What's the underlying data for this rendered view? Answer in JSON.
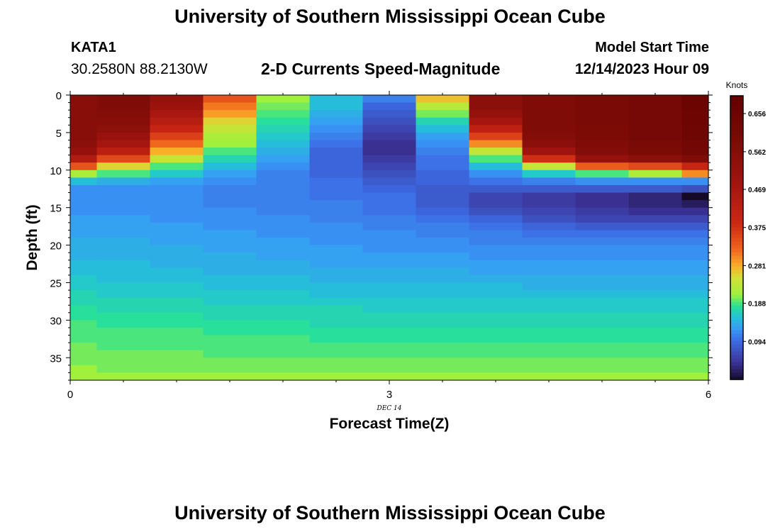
{
  "header": {
    "title": "University of Southern Mississippi Ocean Cube",
    "station_id": "KATA1",
    "coords": "30.2580N  88.2130W",
    "plot_title": "2-D Currents Speed-Magnitude",
    "model_start_label": "Model Start Time",
    "model_start_value": "12/14/2023 Hour 09"
  },
  "footer": {
    "title": "University of Southern Mississippi Ocean Cube"
  },
  "chart_data": {
    "type": "heatmap",
    "title": "2-D Currents Speed-Magnitude",
    "xlabel": "Forecast Time(Z)",
    "ylabel": "Depth (ft)",
    "x_ticks": [
      "0",
      "3",
      "6"
    ],
    "x_tick_values": [
      0,
      3,
      6
    ],
    "x_date_label": "DEC 14",
    "y_ticks": [
      "0",
      "5",
      "10",
      "15",
      "20",
      "25",
      "30",
      "35"
    ],
    "y_tick_values": [
      0,
      5,
      10,
      15,
      20,
      25,
      30,
      35
    ],
    "xlim": [
      0,
      6
    ],
    "ylim": [
      0,
      38
    ],
    "colorbar": {
      "label": "Knots",
      "min": 0.0,
      "max": 0.7,
      "ticks": [
        "0.094",
        "0.188",
        "0.281",
        "0.375",
        "0.469",
        "0.562",
        "0.656"
      ],
      "tick_values": [
        0.094,
        0.188,
        0.281,
        0.375,
        0.469,
        0.562,
        0.656
      ]
    },
    "time_columns": [
      0,
      0.25,
      0.75,
      1.25,
      1.75,
      2.25,
      2.75,
      3.25,
      3.75,
      4.25,
      4.75,
      5.25,
      5.75,
      6.0
    ],
    "depth_rows": [
      0,
      1,
      2,
      3,
      4,
      5,
      6,
      7,
      8,
      9,
      10,
      11,
      12,
      13,
      14,
      15,
      16,
      17,
      18,
      19,
      20,
      21,
      22,
      23,
      24,
      25,
      26,
      27,
      28,
      29,
      30,
      31,
      32,
      33,
      34,
      35,
      36,
      37,
      38
    ],
    "speed_knots": [
      [
        0.56,
        0.58,
        0.52,
        0.34,
        0.21,
        0.15,
        0.11,
        0.27,
        0.55,
        0.58,
        0.6,
        0.61,
        0.66
      ],
      [
        0.56,
        0.58,
        0.5,
        0.31,
        0.2,
        0.15,
        0.09,
        0.23,
        0.55,
        0.58,
        0.6,
        0.61,
        0.66
      ],
      [
        0.56,
        0.57,
        0.47,
        0.29,
        0.19,
        0.14,
        0.08,
        0.2,
        0.52,
        0.58,
        0.6,
        0.61,
        0.65
      ],
      [
        0.56,
        0.56,
        0.44,
        0.26,
        0.18,
        0.13,
        0.07,
        0.17,
        0.48,
        0.58,
        0.6,
        0.61,
        0.65
      ],
      [
        0.56,
        0.54,
        0.4,
        0.24,
        0.17,
        0.12,
        0.06,
        0.15,
        0.42,
        0.58,
        0.59,
        0.61,
        0.64
      ],
      [
        0.56,
        0.51,
        0.36,
        0.22,
        0.16,
        0.11,
        0.05,
        0.13,
        0.36,
        0.57,
        0.59,
        0.61,
        0.64
      ],
      [
        0.55,
        0.48,
        0.32,
        0.21,
        0.15,
        0.1,
        0.04,
        0.12,
        0.3,
        0.55,
        0.58,
        0.6,
        0.63
      ],
      [
        0.52,
        0.43,
        0.28,
        0.19,
        0.14,
        0.09,
        0.04,
        0.11,
        0.24,
        0.49,
        0.57,
        0.59,
        0.62
      ],
      [
        0.45,
        0.35,
        0.24,
        0.17,
        0.13,
        0.09,
        0.05,
        0.1,
        0.19,
        0.38,
        0.52,
        0.55,
        0.58
      ],
      [
        0.34,
        0.26,
        0.19,
        0.15,
        0.12,
        0.09,
        0.06,
        0.1,
        0.15,
        0.24,
        0.33,
        0.35,
        0.4
      ],
      [
        0.22,
        0.19,
        0.16,
        0.13,
        0.11,
        0.09,
        0.07,
        0.09,
        0.12,
        0.16,
        0.19,
        0.22,
        0.3
      ],
      [
        0.15,
        0.14,
        0.13,
        0.12,
        0.11,
        0.1,
        0.08,
        0.09,
        0.1,
        0.11,
        0.12,
        0.12,
        0.12
      ],
      [
        0.12,
        0.12,
        0.12,
        0.11,
        0.11,
        0.1,
        0.09,
        0.08,
        0.08,
        0.08,
        0.08,
        0.08,
        0.07
      ],
      [
        0.12,
        0.12,
        0.12,
        0.11,
        0.11,
        0.1,
        0.1,
        0.08,
        0.06,
        0.05,
        0.04,
        0.03,
        0.0
      ],
      [
        0.12,
        0.12,
        0.12,
        0.11,
        0.11,
        0.11,
        0.1,
        0.08,
        0.06,
        0.05,
        0.04,
        0.03,
        0.02
      ],
      [
        0.12,
        0.12,
        0.12,
        0.12,
        0.11,
        0.11,
        0.1,
        0.09,
        0.07,
        0.06,
        0.05,
        0.04,
        0.04
      ],
      [
        0.13,
        0.13,
        0.12,
        0.12,
        0.12,
        0.11,
        0.11,
        0.1,
        0.09,
        0.07,
        0.06,
        0.06,
        0.06
      ],
      [
        0.13,
        0.13,
        0.13,
        0.12,
        0.12,
        0.12,
        0.11,
        0.11,
        0.1,
        0.09,
        0.08,
        0.08,
        0.08
      ],
      [
        0.13,
        0.13,
        0.13,
        0.13,
        0.12,
        0.12,
        0.12,
        0.11,
        0.11,
        0.1,
        0.1,
        0.1,
        0.1
      ],
      [
        0.14,
        0.14,
        0.13,
        0.13,
        0.13,
        0.12,
        0.12,
        0.12,
        0.11,
        0.11,
        0.11,
        0.11,
        0.11
      ],
      [
        0.14,
        0.14,
        0.14,
        0.13,
        0.13,
        0.13,
        0.12,
        0.12,
        0.12,
        0.12,
        0.12,
        0.12,
        0.12
      ],
      [
        0.14,
        0.14,
        0.14,
        0.14,
        0.13,
        0.13,
        0.13,
        0.13,
        0.12,
        0.12,
        0.12,
        0.12,
        0.12
      ],
      [
        0.15,
        0.15,
        0.14,
        0.14,
        0.14,
        0.13,
        0.13,
        0.13,
        0.13,
        0.13,
        0.13,
        0.13,
        0.13
      ],
      [
        0.15,
        0.15,
        0.15,
        0.14,
        0.14,
        0.14,
        0.14,
        0.14,
        0.13,
        0.13,
        0.13,
        0.13,
        0.13
      ],
      [
        0.16,
        0.15,
        0.15,
        0.15,
        0.15,
        0.14,
        0.14,
        0.14,
        0.14,
        0.14,
        0.14,
        0.14,
        0.14
      ],
      [
        0.16,
        0.16,
        0.16,
        0.15,
        0.15,
        0.15,
        0.15,
        0.15,
        0.15,
        0.14,
        0.14,
        0.14,
        0.14
      ],
      [
        0.17,
        0.16,
        0.16,
        0.16,
        0.16,
        0.15,
        0.15,
        0.15,
        0.15,
        0.15,
        0.15,
        0.15,
        0.15
      ],
      [
        0.17,
        0.17,
        0.17,
        0.16,
        0.16,
        0.16,
        0.16,
        0.16,
        0.16,
        0.16,
        0.16,
        0.16,
        0.16
      ],
      [
        0.18,
        0.17,
        0.17,
        0.17,
        0.17,
        0.17,
        0.16,
        0.16,
        0.16,
        0.16,
        0.16,
        0.16,
        0.16
      ],
      [
        0.18,
        0.18,
        0.18,
        0.17,
        0.17,
        0.17,
        0.17,
        0.17,
        0.17,
        0.17,
        0.17,
        0.17,
        0.17
      ],
      [
        0.19,
        0.18,
        0.18,
        0.18,
        0.18,
        0.17,
        0.17,
        0.17,
        0.17,
        0.17,
        0.17,
        0.17,
        0.17
      ],
      [
        0.19,
        0.19,
        0.19,
        0.18,
        0.18,
        0.18,
        0.18,
        0.18,
        0.18,
        0.18,
        0.18,
        0.18,
        0.18
      ],
      [
        0.19,
        0.19,
        0.19,
        0.19,
        0.19,
        0.18,
        0.18,
        0.18,
        0.18,
        0.18,
        0.18,
        0.18,
        0.18
      ],
      [
        0.2,
        0.19,
        0.19,
        0.19,
        0.19,
        0.19,
        0.19,
        0.19,
        0.19,
        0.19,
        0.19,
        0.19,
        0.19
      ],
      [
        0.2,
        0.2,
        0.2,
        0.19,
        0.19,
        0.19,
        0.19,
        0.19,
        0.19,
        0.19,
        0.19,
        0.19,
        0.19
      ],
      [
        0.2,
        0.2,
        0.2,
        0.2,
        0.2,
        0.2,
        0.2,
        0.2,
        0.2,
        0.2,
        0.2,
        0.2,
        0.2
      ],
      [
        0.21,
        0.2,
        0.2,
        0.2,
        0.2,
        0.2,
        0.2,
        0.2,
        0.2,
        0.2,
        0.2,
        0.2,
        0.2
      ],
      [
        0.21,
        0.21,
        0.21,
        0.21,
        0.21,
        0.21,
        0.21,
        0.21,
        0.21,
        0.21,
        0.21,
        0.21,
        0.21
      ]
    ]
  }
}
